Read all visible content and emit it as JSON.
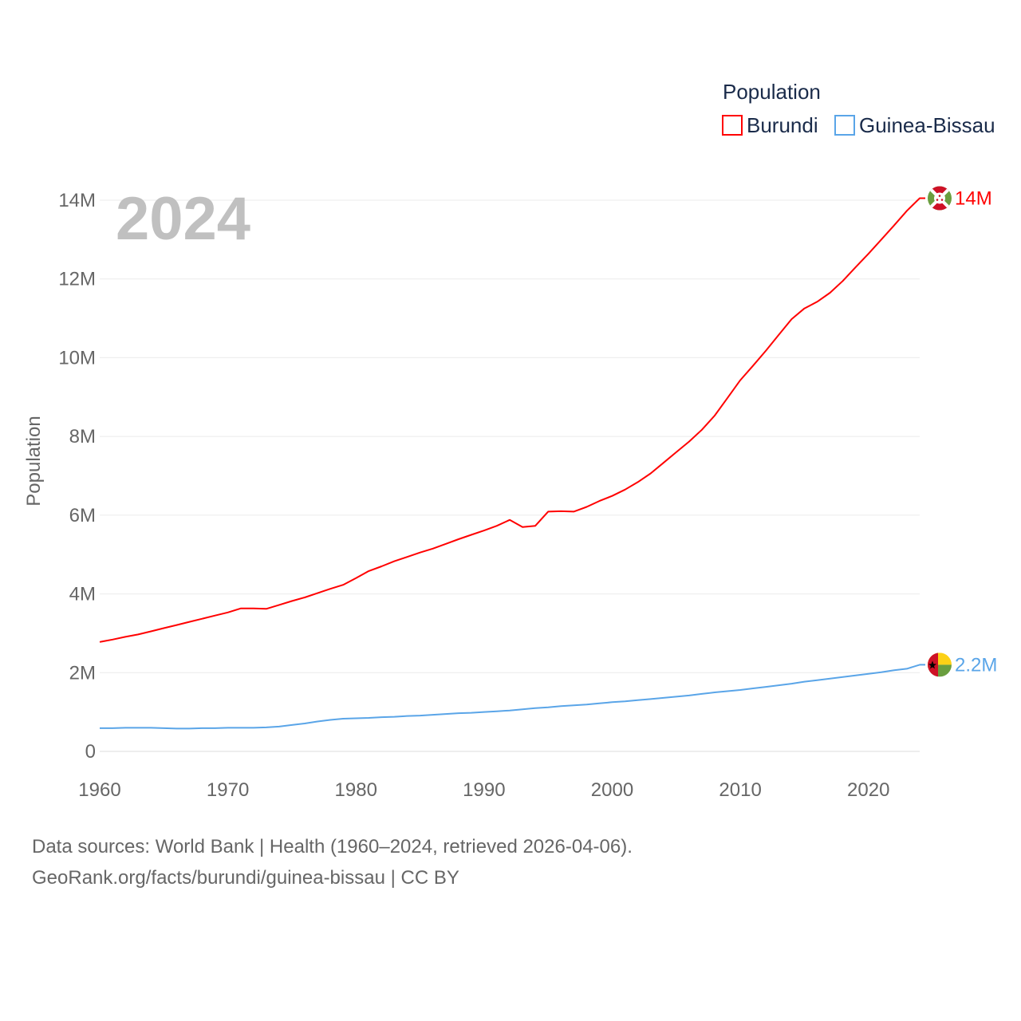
{
  "chart_data": {
    "type": "line",
    "title": "Population",
    "ylabel": "Population",
    "xlabel": "",
    "current_year_label": "2024",
    "xlim": [
      1960,
      2024
    ],
    "ylim": [
      0,
      14000000
    ],
    "x_ticks": [
      1960,
      1970,
      1980,
      1990,
      2000,
      2010,
      2020
    ],
    "x_tick_labels": [
      "1960",
      "1970",
      "1980",
      "1990",
      "2000",
      "2010",
      "2020"
    ],
    "y_ticks": [
      0,
      2000000,
      4000000,
      6000000,
      8000000,
      10000000,
      12000000,
      14000000
    ],
    "y_tick_labels": [
      "0",
      "2M",
      "4M",
      "6M",
      "8M",
      "10M",
      "12M",
      "14M"
    ],
    "grid": true,
    "legend_position": "top-right",
    "x": [
      1960,
      1961,
      1962,
      1963,
      1964,
      1965,
      1966,
      1967,
      1968,
      1969,
      1970,
      1971,
      1972,
      1973,
      1974,
      1975,
      1976,
      1977,
      1978,
      1979,
      1980,
      1981,
      1982,
      1983,
      1984,
      1985,
      1986,
      1987,
      1988,
      1989,
      1990,
      1991,
      1992,
      1993,
      1994,
      1995,
      1996,
      1997,
      1998,
      1999,
      2000,
      2001,
      2002,
      2003,
      2004,
      2005,
      2006,
      2007,
      2008,
      2009,
      2010,
      2011,
      2012,
      2013,
      2014,
      2015,
      2016,
      2017,
      2018,
      2019,
      2020,
      2021,
      2022,
      2023,
      2024
    ],
    "series": [
      {
        "name": "Burundi",
        "color": "#ff0000",
        "end_label": "14M",
        "flag": "burundi-flag",
        "values_millions": [
          2.78,
          2.84,
          2.91,
          2.97,
          3.05,
          3.13,
          3.21,
          3.29,
          3.37,
          3.45,
          3.53,
          3.63,
          3.63,
          3.62,
          3.72,
          3.82,
          3.91,
          4.02,
          4.13,
          4.23,
          4.4,
          4.58,
          4.7,
          4.83,
          4.94,
          5.05,
          5.15,
          5.27,
          5.39,
          5.5,
          5.61,
          5.73,
          5.88,
          5.7,
          5.73,
          6.09,
          6.1,
          6.09,
          6.21,
          6.36,
          6.49,
          6.65,
          6.84,
          7.06,
          7.33,
          7.6,
          7.87,
          8.17,
          8.53,
          8.98,
          9.43,
          9.8,
          10.18,
          10.58,
          10.98,
          11.25,
          11.42,
          11.65,
          11.95,
          12.3,
          12.64,
          13.0,
          13.36,
          13.73,
          14.05
        ]
      },
      {
        "name": "Guinea-Bissau",
        "color": "#5aa5e8",
        "end_label": "2.2M",
        "flag": "guinea-bissau-flag",
        "values_millions": [
          0.59,
          0.59,
          0.6,
          0.6,
          0.6,
          0.59,
          0.58,
          0.58,
          0.59,
          0.59,
          0.6,
          0.6,
          0.6,
          0.61,
          0.63,
          0.67,
          0.71,
          0.76,
          0.8,
          0.83,
          0.84,
          0.85,
          0.87,
          0.88,
          0.9,
          0.91,
          0.93,
          0.95,
          0.97,
          0.98,
          1.0,
          1.02,
          1.04,
          1.07,
          1.1,
          1.12,
          1.15,
          1.17,
          1.19,
          1.22,
          1.25,
          1.27,
          1.3,
          1.33,
          1.36,
          1.39,
          1.42,
          1.46,
          1.5,
          1.53,
          1.56,
          1.6,
          1.64,
          1.68,
          1.72,
          1.77,
          1.81,
          1.85,
          1.89,
          1.93,
          1.97,
          2.01,
          2.06,
          2.1,
          2.2
        ]
      }
    ]
  },
  "source_line1": "Data sources: World Bank | Health (1960–2024, retrieved 2026-04-06).",
  "source_line2": "GeoRank.org/facts/burundi/guinea-bissau | CC BY"
}
